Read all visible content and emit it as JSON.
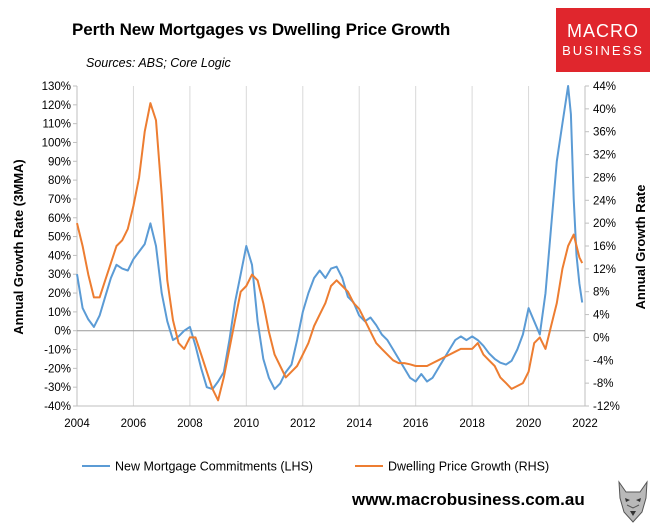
{
  "header": {
    "title": "Perth New Mortgages vs Dwelling Price Growth",
    "subtitle": "Sources: ABS; Core Logic"
  },
  "logo": {
    "line1": "MACRO",
    "line2": "BUSINESS",
    "color": "#e0262d"
  },
  "footer": {
    "url": "www.macrobusiness.com.au"
  },
  "chart_data": {
    "type": "line",
    "xlabel": "",
    "ylabel_left": "Annual Growth Rate (3MMA)",
    "ylabel_right": "Annual Growth Rate",
    "x_ticks": [
      "2004",
      "2006",
      "2008",
      "2010",
      "2012",
      "2014",
      "2016",
      "2018",
      "2020",
      "2022"
    ],
    "xlim": [
      2004,
      2022
    ],
    "y_left_ticks": [
      "-40%",
      "-30%",
      "-20%",
      "-10%",
      "0%",
      "10%",
      "20%",
      "30%",
      "40%",
      "50%",
      "60%",
      "70%",
      "80%",
      "90%",
      "100%",
      "110%",
      "120%",
      "130%"
    ],
    "ylim_left": [
      -40,
      130
    ],
    "y_right_ticks": [
      "-12%",
      "-8%",
      "-4%",
      "0%",
      "4%",
      "8%",
      "12%",
      "16%",
      "20%",
      "24%",
      "28%",
      "32%",
      "36%",
      "40%",
      "44%"
    ],
    "ylim_right": [
      -12,
      44
    ],
    "grid": "vertical",
    "legend_position": "bottom",
    "series": [
      {
        "name": "New Mortgage Commitments (LHS)",
        "axis": "left",
        "color": "#5b9bd5",
        "points": [
          [
            2004.0,
            30
          ],
          [
            2004.2,
            12
          ],
          [
            2004.4,
            6
          ],
          [
            2004.6,
            2
          ],
          [
            2004.8,
            8
          ],
          [
            2005.0,
            18
          ],
          [
            2005.2,
            28
          ],
          [
            2005.4,
            35
          ],
          [
            2005.6,
            33
          ],
          [
            2005.8,
            32
          ],
          [
            2006.0,
            38
          ],
          [
            2006.2,
            42
          ],
          [
            2006.4,
            46
          ],
          [
            2006.6,
            57
          ],
          [
            2006.8,
            45
          ],
          [
            2007.0,
            20
          ],
          [
            2007.2,
            5
          ],
          [
            2007.4,
            -5
          ],
          [
            2007.6,
            -3
          ],
          [
            2007.8,
            0
          ],
          [
            2008.0,
            2
          ],
          [
            2008.2,
            -8
          ],
          [
            2008.4,
            -20
          ],
          [
            2008.6,
            -30
          ],
          [
            2008.8,
            -31
          ],
          [
            2009.0,
            -27
          ],
          [
            2009.2,
            -22
          ],
          [
            2009.4,
            -5
          ],
          [
            2009.6,
            15
          ],
          [
            2009.8,
            30
          ],
          [
            2010.0,
            45
          ],
          [
            2010.2,
            35
          ],
          [
            2010.4,
            5
          ],
          [
            2010.6,
            -15
          ],
          [
            2010.8,
            -25
          ],
          [
            2011.0,
            -31
          ],
          [
            2011.2,
            -28
          ],
          [
            2011.4,
            -22
          ],
          [
            2011.6,
            -18
          ],
          [
            2011.8,
            -5
          ],
          [
            2012.0,
            10
          ],
          [
            2012.2,
            20
          ],
          [
            2012.4,
            28
          ],
          [
            2012.6,
            32
          ],
          [
            2012.8,
            28
          ],
          [
            2013.0,
            33
          ],
          [
            2013.2,
            34
          ],
          [
            2013.4,
            28
          ],
          [
            2013.6,
            18
          ],
          [
            2013.8,
            15
          ],
          [
            2014.0,
            8
          ],
          [
            2014.2,
            5
          ],
          [
            2014.4,
            7
          ],
          [
            2014.6,
            3
          ],
          [
            2014.8,
            -2
          ],
          [
            2015.0,
            -5
          ],
          [
            2015.2,
            -10
          ],
          [
            2015.4,
            -15
          ],
          [
            2015.6,
            -20
          ],
          [
            2015.8,
            -25
          ],
          [
            2016.0,
            -27
          ],
          [
            2016.2,
            -23
          ],
          [
            2016.4,
            -27
          ],
          [
            2016.6,
            -25
          ],
          [
            2016.8,
            -20
          ],
          [
            2017.0,
            -15
          ],
          [
            2017.2,
            -10
          ],
          [
            2017.4,
            -5
          ],
          [
            2017.6,
            -3
          ],
          [
            2017.8,
            -5
          ],
          [
            2018.0,
            -3
          ],
          [
            2018.2,
            -5
          ],
          [
            2018.4,
            -8
          ],
          [
            2018.6,
            -12
          ],
          [
            2018.8,
            -15
          ],
          [
            2019.0,
            -17
          ],
          [
            2019.2,
            -18
          ],
          [
            2019.4,
            -16
          ],
          [
            2019.6,
            -10
          ],
          [
            2019.8,
            -2
          ],
          [
            2020.0,
            12
          ],
          [
            2020.2,
            5
          ],
          [
            2020.4,
            -2
          ],
          [
            2020.6,
            20
          ],
          [
            2020.8,
            55
          ],
          [
            2021.0,
            90
          ],
          [
            2021.2,
            110
          ],
          [
            2021.4,
            130
          ],
          [
            2021.5,
            115
          ],
          [
            2021.6,
            70
          ],
          [
            2021.7,
            40
          ],
          [
            2021.8,
            25
          ],
          [
            2021.9,
            15
          ]
        ]
      },
      {
        "name": "Dwelling Price Growth (RHS)",
        "axis": "right",
        "color": "#ed7d31",
        "points": [
          [
            2004.0,
            20
          ],
          [
            2004.2,
            16
          ],
          [
            2004.4,
            11
          ],
          [
            2004.6,
            7
          ],
          [
            2004.8,
            7
          ],
          [
            2005.0,
            10
          ],
          [
            2005.2,
            13
          ],
          [
            2005.4,
            16
          ],
          [
            2005.6,
            17
          ],
          [
            2005.8,
            19
          ],
          [
            2006.0,
            23
          ],
          [
            2006.2,
            28
          ],
          [
            2006.4,
            36
          ],
          [
            2006.6,
            41
          ],
          [
            2006.8,
            38
          ],
          [
            2007.0,
            25
          ],
          [
            2007.2,
            10
          ],
          [
            2007.4,
            3
          ],
          [
            2007.6,
            -1
          ],
          [
            2007.8,
            -2
          ],
          [
            2008.0,
            0
          ],
          [
            2008.2,
            0
          ],
          [
            2008.4,
            -3
          ],
          [
            2008.6,
            -6
          ],
          [
            2008.8,
            -9
          ],
          [
            2009.0,
            -11
          ],
          [
            2009.2,
            -7
          ],
          [
            2009.4,
            -2
          ],
          [
            2009.6,
            3
          ],
          [
            2009.8,
            8
          ],
          [
            2010.0,
            9
          ],
          [
            2010.2,
            11
          ],
          [
            2010.4,
            10
          ],
          [
            2010.6,
            6
          ],
          [
            2010.8,
            1
          ],
          [
            2011.0,
            -3
          ],
          [
            2011.2,
            -5
          ],
          [
            2011.4,
            -7
          ],
          [
            2011.6,
            -6
          ],
          [
            2011.8,
            -5
          ],
          [
            2012.0,
            -3
          ],
          [
            2012.2,
            -1
          ],
          [
            2012.4,
            2
          ],
          [
            2012.6,
            4
          ],
          [
            2012.8,
            6
          ],
          [
            2013.0,
            9
          ],
          [
            2013.2,
            10
          ],
          [
            2013.4,
            9
          ],
          [
            2013.6,
            8
          ],
          [
            2013.8,
            6
          ],
          [
            2014.0,
            5
          ],
          [
            2014.2,
            3
          ],
          [
            2014.4,
            1
          ],
          [
            2014.6,
            -1
          ],
          [
            2014.8,
            -2
          ],
          [
            2015.0,
            -3
          ],
          [
            2015.2,
            -4
          ],
          [
            2015.4,
            -4.5
          ],
          [
            2015.6,
            -4.5
          ],
          [
            2015.8,
            -4.7
          ],
          [
            2016.0,
            -5
          ],
          [
            2016.2,
            -5
          ],
          [
            2016.4,
            -5
          ],
          [
            2016.6,
            -4.5
          ],
          [
            2016.8,
            -4
          ],
          [
            2017.0,
            -3.5
          ],
          [
            2017.2,
            -3
          ],
          [
            2017.4,
            -2.5
          ],
          [
            2017.6,
            -2
          ],
          [
            2017.8,
            -2
          ],
          [
            2018.0,
            -2
          ],
          [
            2018.2,
            -1
          ],
          [
            2018.4,
            -3
          ],
          [
            2018.6,
            -4
          ],
          [
            2018.8,
            -5
          ],
          [
            2019.0,
            -7
          ],
          [
            2019.2,
            -8
          ],
          [
            2019.4,
            -9
          ],
          [
            2019.6,
            -8.5
          ],
          [
            2019.8,
            -8
          ],
          [
            2020.0,
            -6
          ],
          [
            2020.2,
            -1
          ],
          [
            2020.4,
            0
          ],
          [
            2020.6,
            -2
          ],
          [
            2020.8,
            2
          ],
          [
            2021.0,
            6
          ],
          [
            2021.2,
            12
          ],
          [
            2021.4,
            16
          ],
          [
            2021.6,
            18
          ],
          [
            2021.8,
            14
          ],
          [
            2021.9,
            13
          ]
        ]
      }
    ]
  }
}
